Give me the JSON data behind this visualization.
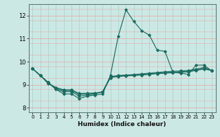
{
  "xlabel": "Humidex (Indice chaleur)",
  "xlim": [
    -0.5,
    23.5
  ],
  "ylim": [
    7.8,
    12.5
  ],
  "yticks": [
    8,
    9,
    10,
    11,
    12
  ],
  "xticks": [
    0,
    1,
    2,
    3,
    4,
    5,
    6,
    7,
    8,
    9,
    10,
    11,
    12,
    13,
    14,
    15,
    16,
    17,
    18,
    19,
    20,
    21,
    22,
    23
  ],
  "background_color": "#cce8e4",
  "grid_color_v": "#aad4ce",
  "grid_color_h": "#e8aaaa",
  "line_color": "#1a6b60",
  "lines": [
    [
      9.7,
      9.4,
      9.1,
      8.8,
      8.6,
      8.6,
      8.4,
      8.5,
      8.55,
      8.6,
      9.4,
      11.1,
      12.25,
      11.75,
      11.35,
      11.15,
      10.5,
      10.45,
      9.55,
      9.5,
      9.45,
      9.85,
      9.85,
      9.6
    ],
    [
      9.7,
      9.4,
      9.1,
      8.8,
      8.7,
      8.7,
      8.5,
      8.55,
      8.6,
      8.7,
      9.35,
      9.4,
      9.42,
      9.44,
      9.47,
      9.5,
      9.53,
      9.56,
      9.58,
      9.6,
      9.62,
      9.68,
      9.75,
      9.62
    ],
    [
      9.7,
      9.4,
      9.1,
      8.85,
      8.75,
      8.75,
      8.58,
      8.6,
      8.62,
      8.68,
      9.3,
      9.38,
      9.4,
      9.42,
      9.44,
      9.47,
      9.5,
      9.52,
      9.54,
      9.56,
      9.58,
      9.64,
      9.7,
      9.62
    ],
    [
      9.7,
      9.4,
      9.05,
      8.88,
      8.78,
      8.78,
      8.62,
      8.63,
      8.64,
      8.68,
      9.32,
      9.36,
      9.38,
      9.4,
      9.42,
      9.45,
      9.48,
      9.5,
      9.52,
      9.54,
      9.56,
      9.62,
      9.68,
      9.62
    ]
  ]
}
